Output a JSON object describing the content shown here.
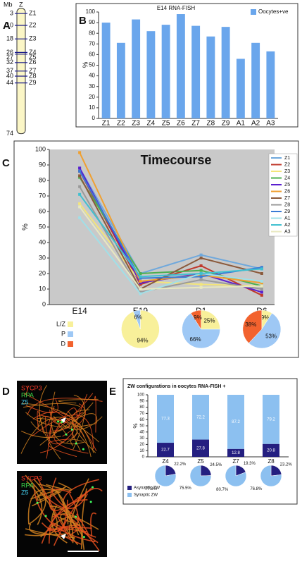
{
  "panel_letters": [
    "A",
    "B",
    "C",
    "D",
    "E"
  ],
  "panel_a": {
    "axis_label": "Mb",
    "title": "Z",
    "length": 74,
    "loci": [
      {
        "mb": 3,
        "label": "Z1"
      },
      {
        "mb": 10,
        "label": "Z2"
      },
      {
        "mb": 18,
        "label": "Z3"
      },
      {
        "mb": 26,
        "label": "Z4"
      },
      {
        "mb": 27,
        "label": "Z5"
      },
      {
        "mb": 32,
        "label": "Z6"
      },
      {
        "mb": 37,
        "label": "Z7"
      },
      {
        "mb": 40,
        "label": "Z8"
      },
      {
        "mb": 44,
        "label": "Z9"
      }
    ]
  },
  "panel_d": {
    "images": [
      {
        "labels": [
          "SYCP3",
          "RPA",
          "Z5"
        ]
      },
      {
        "labels": [
          "SYCP3",
          "RPA",
          "Z5"
        ]
      }
    ]
  },
  "chart_data": [
    {
      "type": "bar",
      "title": "E14 RNA-FISH",
      "y_label": "%",
      "categories": [
        "Z1",
        "Z2",
        "Z3",
        "Z4",
        "Z5",
        "Z6",
        "Z7",
        "Z8",
        "Z9",
        "A1",
        "A2",
        "A3"
      ],
      "series": [
        {
          "name": "Oocytes+ve",
          "color": "#6aa6ec",
          "values": [
            90,
            71,
            93,
            82,
            88,
            98,
            87,
            77,
            86,
            56,
            71,
            63
          ]
        }
      ],
      "ylim": [
        0,
        100
      ],
      "yticks": [
        0,
        10,
        20,
        30,
        40,
        50,
        60,
        70,
        80,
        90,
        100
      ],
      "legend": "upper right"
    },
    {
      "type": "line",
      "title": "Timecourse",
      "y_label": "%",
      "background": "#c9c9c9",
      "categories": [
        "E14",
        "E19",
        "D1",
        "D6"
      ],
      "series": [
        {
          "name": "Z1",
          "color": "#6fa8dc",
          "values": [
            88,
            20,
            32,
            23
          ]
        },
        {
          "name": "Z2",
          "color": "#c0392b",
          "values": [
            86,
            13,
            25,
            6
          ]
        },
        {
          "name": "Z3",
          "color": "#f3e57a",
          "values": [
            65,
            15,
            13,
            12
          ]
        },
        {
          "name": "Z4",
          "color": "#4caf50",
          "values": [
            82,
            20,
            22,
            12
          ]
        },
        {
          "name": "Z5",
          "color": "#5a1fcf",
          "values": [
            88,
            14,
            20,
            8
          ]
        },
        {
          "name": "Z6",
          "color": "#f0a030",
          "values": [
            98,
            15,
            19,
            14
          ]
        },
        {
          "name": "Z7",
          "color": "#8b5a3c",
          "values": [
            83,
            10,
            30,
            20
          ]
        },
        {
          "name": "Z8",
          "color": "#9a9a9a",
          "values": [
            76,
            8,
            16,
            10
          ]
        },
        {
          "name": "Z9",
          "color": "#3a7bd5",
          "values": [
            86,
            17,
            18,
            24
          ]
        },
        {
          "name": "A1",
          "color": "#a0e0e8",
          "values": [
            56,
            7,
            20,
            15
          ]
        },
        {
          "name": "A2",
          "color": "#40c0d0",
          "values": [
            71,
            18,
            20,
            23
          ]
        },
        {
          "name": "A3",
          "color": "#e8e8c0",
          "values": [
            63,
            10,
            11,
            12
          ]
        }
      ],
      "ylim": [
        0,
        100
      ],
      "yticks": [
        0,
        10,
        20,
        30,
        40,
        50,
        60,
        70,
        80,
        90,
        100
      ],
      "legend": "right"
    },
    {
      "type": "pie",
      "categories": [
        "L/Z",
        "P",
        "D"
      ],
      "colors": [
        "#f8f09a",
        "#9ec8f5",
        "#f2622e"
      ],
      "pies": [
        {
          "values": [
            94,
            6,
            0
          ],
          "value_labels": [
            "94%",
            "6%",
            null
          ]
        },
        {
          "values": [
            25,
            66,
            9
          ],
          "value_labels": [
            "25%",
            "66%",
            "9%"
          ]
        },
        {
          "values": [
            9,
            53,
            38
          ],
          "value_labels": [
            "9%",
            "53%",
            "38%"
          ]
        }
      ]
    },
    {
      "type": "stacked_bar",
      "title": "ZW configurations in oocytes RNA-FISH +",
      "y_label": "%",
      "categories": [
        "Z4",
        "Z5",
        "Z7",
        "Z8"
      ],
      "series": [
        {
          "color": "#241f80",
          "values": [
            22.7,
            27.8,
            12.8,
            20.8
          ]
        },
        {
          "color": "#8cc0f0",
          "values": [
            77.3,
            72.2,
            87.2,
            79.2
          ]
        }
      ],
      "ylim": [
        0,
        100
      ],
      "yticks": [
        0,
        10,
        20,
        30,
        40,
        50,
        60,
        70,
        80,
        90,
        100
      ]
    },
    {
      "type": "pie",
      "categories": [
        "Asynaptic ZW",
        "Synaptic ZW"
      ],
      "colors": [
        "#241f80",
        "#8cc0f0"
      ],
      "pies": [
        {
          "values": [
            22.2,
            77.8
          ],
          "value_labels": [
            "22.2%",
            "77.8%"
          ]
        },
        {
          "values": [
            24.5,
            75.5
          ],
          "value_labels": [
            "24.5%",
            "75.5%"
          ]
        },
        {
          "values": [
            19.3,
            80.7
          ],
          "value_labels": [
            "19.3%",
            "80.7%"
          ]
        },
        {
          "values": [
            23.2,
            76.8
          ],
          "value_labels": [
            "23.2%",
            "76.8%"
          ]
        }
      ]
    }
  ]
}
